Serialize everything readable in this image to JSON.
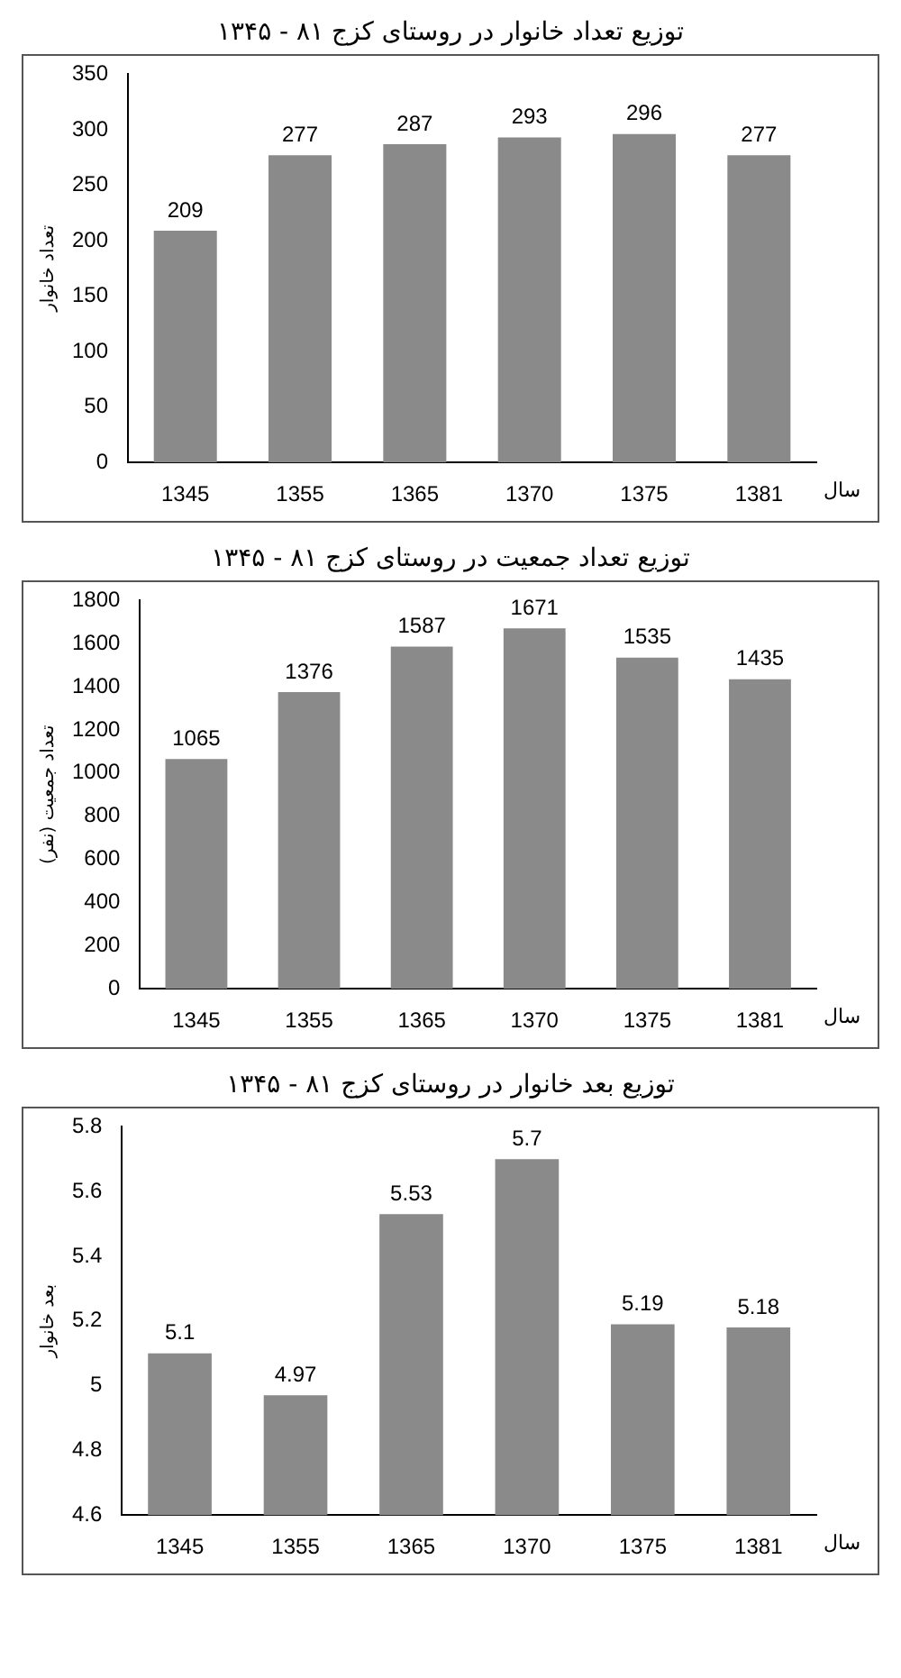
{
  "chart_data": [
    {
      "type": "bar",
      "title": "توزیع تعداد خانوار در روستای کزج ۸۱ - ۱۳۴۵",
      "xlabel": "سال",
      "ylabel": "تعداد خانوار",
      "categories": [
        "1345",
        "1355",
        "1365",
        "1370",
        "1375",
        "1381"
      ],
      "values": [
        209,
        277,
        287,
        293,
        296,
        277
      ],
      "color": "#8a8a8a",
      "ylim": [
        0,
        350
      ],
      "yticks": [
        0,
        50,
        100,
        150,
        200,
        250,
        300,
        350
      ],
      "data_labels": true,
      "grid": false,
      "legend": false
    },
    {
      "type": "bar",
      "title": "توزیع تعداد جمعیت در روستای کزج ۸۱ - ۱۳۴۵",
      "xlabel": "سال",
      "ylabel": "تعداد جمعیت (نفر)",
      "categories": [
        "1345",
        "1355",
        "1365",
        "1370",
        "1375",
        "1381"
      ],
      "values": [
        1065,
        1376,
        1587,
        1671,
        1535,
        1435
      ],
      "color": "#8a8a8a",
      "ylim": [
        0,
        1800
      ],
      "yticks": [
        0,
        200,
        400,
        600,
        800,
        1000,
        1200,
        1400,
        1600,
        1800
      ],
      "data_labels": true,
      "grid": false,
      "legend": false
    },
    {
      "type": "bar",
      "title": "توزیع بعد خانوار در روستای کزج ۸۱ - ۱۳۴۵",
      "xlabel": "سال",
      "ylabel": "بعد خانوار",
      "categories": [
        "1345",
        "1355",
        "1365",
        "1370",
        "1375",
        "1381"
      ],
      "values": [
        5.1,
        4.97,
        5.53,
        5.7,
        5.19,
        5.18
      ],
      "color": "#8a8a8a",
      "ylim": [
        4.6,
        5.8
      ],
      "yticks": [
        4.6,
        4.8,
        5,
        5.2,
        5.4,
        5.6,
        5.8
      ],
      "data_labels": true,
      "grid": false,
      "legend": false
    }
  ]
}
